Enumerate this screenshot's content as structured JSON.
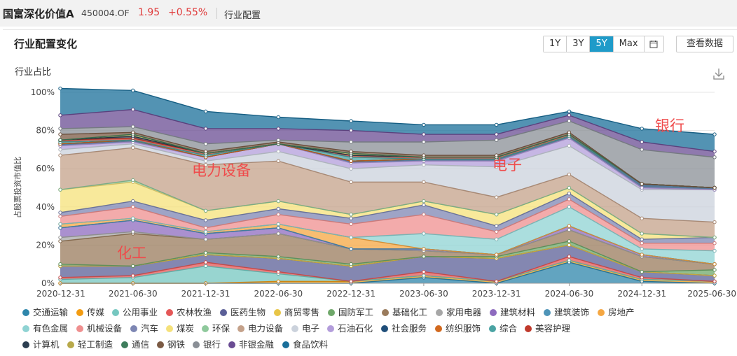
{
  "header": {
    "fund_name": "国富深化价值A",
    "fund_code": "450004.OF",
    "price": "1.95",
    "change": "+0.55%",
    "tab": "行业配置"
  },
  "panel": {
    "title": "行业配置变化",
    "periods": [
      "1Y",
      "3Y",
      "5Y",
      "Max"
    ],
    "active_period": "5Y",
    "view_data_label": "查看数据",
    "download_icon": "download-icon",
    "calendar_icon": "calendar-icon"
  },
  "chart_data": {
    "type": "area",
    "stacked": true,
    "title": "行业占比",
    "ylabel": "占股票投资市值比",
    "xlabel": "",
    "ylim": [
      0,
      100
    ],
    "yticks": [
      "0%",
      "20%",
      "40%",
      "60%",
      "80%",
      "100%"
    ],
    "grid": true,
    "legend_position": "bottom",
    "x": [
      "2020-12-31",
      "2021-06-30",
      "2021-12-31",
      "2022-06-30",
      "2022-12-31",
      "2023-06-30",
      "2023-12-31",
      "2024-06-30",
      "2024-12-31",
      "2025-06-30"
    ],
    "annotations": [
      "化工",
      "电力设备",
      "电子",
      "银行"
    ],
    "series": [
      {
        "name": "交通运输",
        "color": "#2e86ab",
        "values": [
          0,
          0,
          0,
          0,
          0,
          3,
          0,
          11,
          1,
          0
        ]
      },
      {
        "name": "传媒",
        "color": "#f39c12",
        "values": [
          0,
          0,
          0,
          1,
          1,
          1,
          1,
          1,
          1,
          1
        ]
      },
      {
        "name": "公用事业",
        "color": "#76c7c0",
        "values": [
          2,
          3,
          9,
          4,
          0,
          0,
          0,
          0,
          0,
          0
        ]
      },
      {
        "name": "农林牧渔",
        "color": "#e45757",
        "values": [
          1,
          1,
          2,
          1,
          0,
          2,
          0,
          2,
          1,
          0
        ]
      },
      {
        "name": "医药生物",
        "color": "#5b5f97",
        "values": [
          6,
          5,
          4,
          7,
          8,
          8,
          12,
          6,
          3,
          3
        ]
      },
      {
        "name": "商贸零售",
        "color": "#e8c547",
        "values": [
          0,
          0,
          0,
          0,
          0,
          0,
          0,
          0,
          0,
          0
        ]
      },
      {
        "name": "国防军工",
        "color": "#6fa86a",
        "values": [
          1,
          0,
          1,
          1,
          1,
          0,
          1,
          2,
          0,
          3
        ]
      },
      {
        "name": "基础化工",
        "color": "#9a7b5c",
        "values": [
          12,
          17,
          7,
          12,
          8,
          3,
          1,
          6,
          8,
          3
        ]
      },
      {
        "name": "家用电器",
        "color": "#a7a7a7",
        "values": [
          2,
          1,
          0,
          0,
          0,
          0,
          0,
          0,
          0,
          0
        ]
      },
      {
        "name": "建筑材料",
        "color": "#8e6bbf",
        "values": [
          5,
          6,
          3,
          3,
          0,
          1,
          0,
          2,
          1,
          0
        ]
      },
      {
        "name": "建筑装饰",
        "color": "#4e94b8",
        "values": [
          0,
          0,
          0,
          0,
          0,
          0,
          0,
          0,
          0,
          0
        ]
      },
      {
        "name": "房地产",
        "color": "#f5a742",
        "values": [
          2,
          1,
          1,
          2,
          6,
          0,
          0,
          0,
          0,
          0
        ]
      },
      {
        "name": "有色金属",
        "color": "#8fd3d3",
        "values": [
          0,
          0,
          0,
          0,
          0,
          8,
          8,
          10,
          3,
          7
        ]
      },
      {
        "name": "机械设备",
        "color": "#ef8f8f",
        "values": [
          4,
          6,
          2,
          5,
          7,
          10,
          4,
          4,
          3,
          4
        ]
      },
      {
        "name": "汽车",
        "color": "#7d86b3",
        "values": [
          2,
          3,
          4,
          3,
          3,
          5,
          3,
          3,
          2,
          3
        ]
      },
      {
        "name": "煤炭",
        "color": "#f5e17a",
        "values": [
          12,
          10,
          5,
          4,
          2,
          2,
          6,
          3,
          3,
          0
        ]
      },
      {
        "name": "环保",
        "color": "#8fc99c",
        "values": [
          0,
          1,
          0,
          0,
          0,
          0,
          0,
          0,
          0,
          0
        ]
      },
      {
        "name": "电力设备",
        "color": "#c4a18a",
        "values": [
          18,
          17,
          24,
          21,
          17,
          10,
          9,
          7,
          8,
          8
        ]
      },
      {
        "name": "电子",
        "color": "#cbd2dc",
        "values": [
          3,
          2,
          2,
          5,
          7,
          9,
          16,
          15,
          15,
          17
        ]
      },
      {
        "name": "石油石化",
        "color": "#b39ddb",
        "values": [
          2,
          1,
          2,
          4,
          3,
          2,
          3,
          4,
          1,
          0
        ]
      },
      {
        "name": "社会服务",
        "color": "#1f4e79",
        "values": [
          1,
          1,
          0,
          0,
          1,
          1,
          1,
          1,
          2,
          1
        ]
      },
      {
        "name": "纺织服饰",
        "color": "#d2691e",
        "values": [
          0,
          0,
          0,
          0,
          0,
          0,
          0,
          0,
          0,
          0
        ]
      },
      {
        "name": "综合",
        "color": "#4aa3a3",
        "values": [
          1,
          0,
          1,
          0,
          2,
          0,
          0,
          0,
          0,
          0
        ]
      },
      {
        "name": "美容护理",
        "color": "#c0392b",
        "values": [
          1,
          1,
          1,
          0,
          1,
          1,
          1,
          1,
          0,
          0
        ]
      },
      {
        "name": "计算机",
        "color": "#2c3e50",
        "values": [
          0,
          1,
          0,
          0,
          0,
          0,
          0,
          0,
          0,
          0
        ]
      },
      {
        "name": "轻工制造",
        "color": "#b8a94a",
        "values": [
          0,
          1,
          0,
          0,
          1,
          0,
          0,
          0,
          0,
          0
        ]
      },
      {
        "name": "通信",
        "color": "#3e7d5c",
        "values": [
          0,
          0,
          0,
          0,
          0,
          0,
          0,
          0,
          0,
          0
        ]
      },
      {
        "name": "钢铁",
        "color": "#7b5a44",
        "values": [
          3,
          1,
          1,
          1,
          1,
          1,
          1,
          1,
          0,
          0
        ]
      },
      {
        "name": "银行",
        "color": "#8a8f96",
        "values": [
          3,
          3,
          4,
          1,
          5,
          7,
          8,
          6,
          18,
          16
        ]
      },
      {
        "name": "非银金融",
        "color": "#6a4c93",
        "values": [
          7,
          9,
          8,
          6,
          6,
          4,
          3,
          3,
          4,
          3
        ]
      },
      {
        "name": "食品饮料",
        "color": "#1a6f9a",
        "values": [
          14,
          10,
          9,
          6,
          5,
          5,
          5,
          2,
          7,
          9
        ]
      }
    ]
  }
}
